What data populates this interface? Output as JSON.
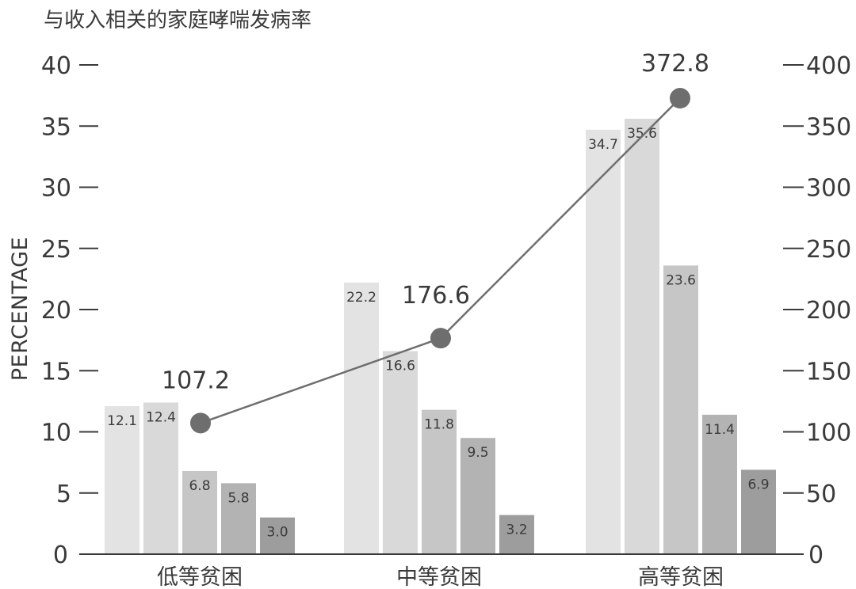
{
  "chart_data": {
    "type": "bar",
    "title": "与收入相关的家庭哮喘发病率",
    "ylabel": "PERCENTAGE",
    "ylim": [
      0,
      40
    ],
    "yticks": [
      0,
      5,
      10,
      15,
      20,
      25,
      30,
      35,
      40
    ],
    "y2lim": [
      0,
      400
    ],
    "y2ticks": [
      0,
      50,
      100,
      150,
      200,
      250,
      300,
      350,
      400
    ],
    "categories": [
      "低等贫困",
      "中等贫困",
      "高等贫困"
    ],
    "series": [
      {
        "values": [
          12.1,
          22.2,
          34.7
        ],
        "color": "#e3e3e3"
      },
      {
        "values": [
          12.4,
          16.6,
          35.6
        ],
        "color": "#d9d9d9"
      },
      {
        "values": [
          6.8,
          11.8,
          23.6
        ],
        "color": "#c6c6c6"
      },
      {
        "values": [
          5.8,
          9.5,
          11.4
        ],
        "color": "#b3b3b3"
      },
      {
        "values": [
          3.0,
          3.2,
          6.9
        ],
        "color": "#9d9d9d"
      }
    ],
    "line": {
      "axis": "right",
      "values": [
        107.2,
        176.6,
        372.8
      ],
      "color": "#6e6e6e"
    },
    "grid": false,
    "legend": "none"
  }
}
